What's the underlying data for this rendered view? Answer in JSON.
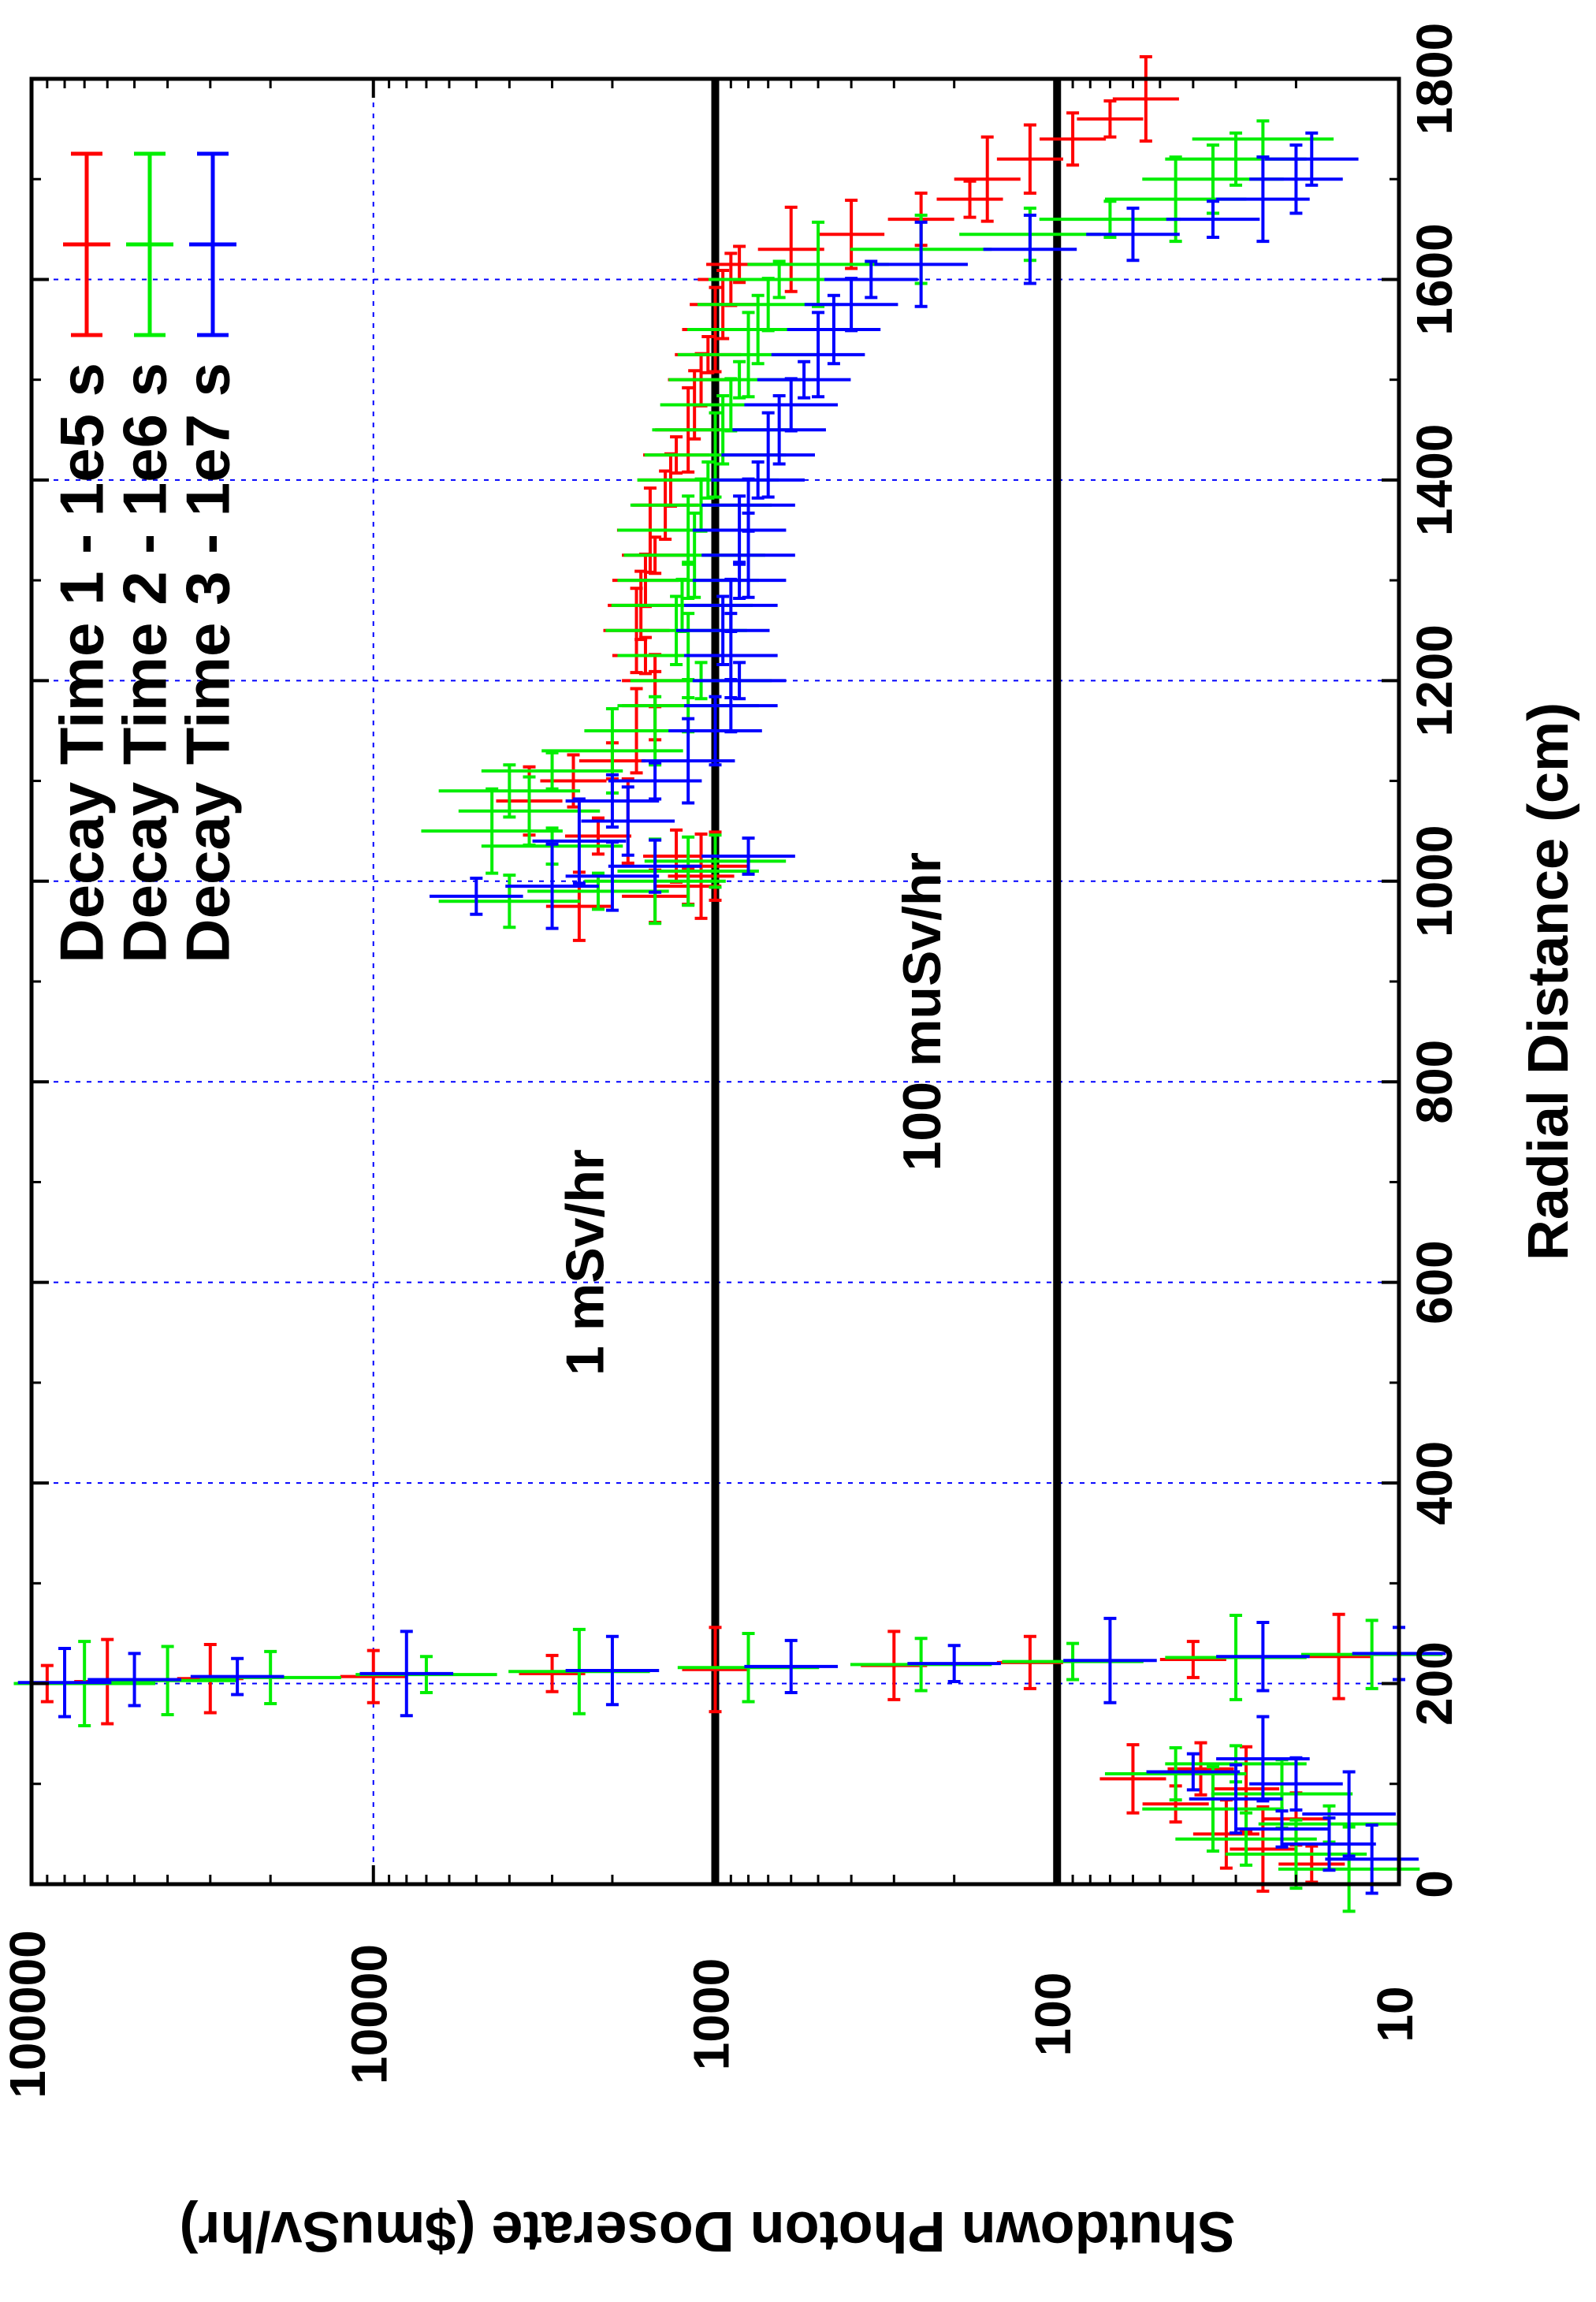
{
  "chart_data": {
    "type": "scatter",
    "xlabel": "Radial Distance (cm)",
    "ylabel": "Shutdown Photon Doserate ($muSv/hr)",
    "x_ticks": [
      "0",
      "200",
      "400",
      "600",
      "800",
      "1000",
      "1200",
      "1400",
      "1600",
      "1800"
    ],
    "y_ticks": [
      "10",
      "100",
      "1000",
      "10000",
      "100000"
    ],
    "xlim": [
      0,
      1800
    ],
    "ylim": [
      10,
      100000
    ],
    "y_scale": "log",
    "grid": true,
    "legend_position": "top-right",
    "reference_lines": [
      {
        "label": "1 mSv/hr",
        "value": 1000
      },
      {
        "label": "100 muSv/hr",
        "value": 100
      }
    ],
    "series": [
      {
        "name": "Decay Time 1 - 1e5 s",
        "color": "#ff0000",
        "points": [
          [
            20,
            18
          ],
          [
            35,
            25
          ],
          [
            50,
            32
          ],
          [
            65,
            20
          ],
          [
            80,
            45
          ],
          [
            95,
            28
          ],
          [
            105,
            60
          ],
          [
            115,
            38
          ],
          [
            200,
            90000
          ],
          [
            202,
            60000
          ],
          [
            205,
            30000
          ],
          [
            207,
            10000
          ],
          [
            210,
            3000
          ],
          [
            214,
            1000
          ],
          [
            218,
            300
          ],
          [
            221,
            120
          ],
          [
            224,
            40
          ],
          [
            227,
            15
          ],
          [
            975,
            2500
          ],
          [
            985,
            1500
          ],
          [
            995,
            1200
          ],
          [
            1005,
            1100
          ],
          [
            1015,
            1000
          ],
          [
            1025,
            1300
          ],
          [
            1045,
            2200
          ],
          [
            1060,
            1800
          ],
          [
            1080,
            3500
          ],
          [
            1100,
            2600
          ],
          [
            1120,
            2000
          ],
          [
            1150,
            1700
          ],
          [
            1175,
            1500
          ],
          [
            1200,
            1500
          ],
          [
            1225,
            1600
          ],
          [
            1250,
            1700
          ],
          [
            1275,
            1650
          ],
          [
            1300,
            1600
          ],
          [
            1325,
            1500
          ],
          [
            1350,
            1550
          ],
          [
            1375,
            1400
          ],
          [
            1400,
            1350
          ],
          [
            1425,
            1300
          ],
          [
            1450,
            1200
          ],
          [
            1475,
            1150
          ],
          [
            1500,
            1100
          ],
          [
            1525,
            1050
          ],
          [
            1550,
            1000
          ],
          [
            1575,
            950
          ],
          [
            1600,
            900
          ],
          [
            1615,
            850
          ],
          [
            1630,
            600
          ],
          [
            1645,
            400
          ],
          [
            1660,
            250
          ],
          [
            1680,
            180
          ],
          [
            1700,
            160
          ],
          [
            1720,
            120
          ],
          [
            1740,
            90
          ],
          [
            1760,
            70
          ],
          [
            1780,
            55
          ]
        ]
      },
      {
        "name": "Decay Time 2 - 1e6 s",
        "color": "#00ee00",
        "points": [
          [
            15,
            14
          ],
          [
            30,
            20
          ],
          [
            45,
            28
          ],
          [
            60,
            16
          ],
          [
            75,
            35
          ],
          [
            90,
            22
          ],
          [
            110,
            45
          ],
          [
            120,
            30
          ],
          [
            200,
            70000
          ],
          [
            203,
            40000
          ],
          [
            206,
            20000
          ],
          [
            209,
            7000
          ],
          [
            212,
            2500
          ],
          [
            216,
            800
          ],
          [
            219,
            250
          ],
          [
            222,
            90
          ],
          [
            226,
            30
          ],
          [
            229,
            12
          ],
          [
            980,
            4000
          ],
          [
            990,
            2200
          ],
          [
            1000,
            1500
          ],
          [
            1010,
            1200
          ],
          [
            1020,
            1000
          ],
          [
            1035,
            3000
          ],
          [
            1050,
            4500
          ],
          [
            1070,
            3500
          ],
          [
            1090,
            4000
          ],
          [
            1110,
            3000
          ],
          [
            1130,
            2000
          ],
          [
            1150,
            1500
          ],
          [
            1175,
            1200
          ],
          [
            1200,
            1100
          ],
          [
            1225,
            1200
          ],
          [
            1250,
            1300
          ],
          [
            1275,
            1250
          ],
          [
            1300,
            1200
          ],
          [
            1325,
            1150
          ],
          [
            1350,
            1200
          ],
          [
            1375,
            1100
          ],
          [
            1400,
            1050
          ],
          [
            1425,
            1000
          ],
          [
            1450,
            950
          ],
          [
            1475,
            900
          ],
          [
            1500,
            850
          ],
          [
            1525,
            800
          ],
          [
            1550,
            750
          ],
          [
            1575,
            700
          ],
          [
            1600,
            650
          ],
          [
            1615,
            500
          ],
          [
            1630,
            250
          ],
          [
            1645,
            120
          ],
          [
            1660,
            70
          ],
          [
            1680,
            45
          ],
          [
            1700,
            35
          ],
          [
            1720,
            30
          ],
          [
            1740,
            25
          ]
        ]
      },
      {
        "name": "Decay Time 3 - 1e7 s",
        "color": "#0000ff",
        "points": [
          [
            25,
            12
          ],
          [
            40,
            16
          ],
          [
            55,
            22
          ],
          [
            70,
            14
          ],
          [
            85,
            30
          ],
          [
            100,
            20
          ],
          [
            112,
            40
          ],
          [
            125,
            25
          ],
          [
            201,
            80000
          ],
          [
            204,
            50000
          ],
          [
            207,
            25000
          ],
          [
            210,
            8000
          ],
          [
            213,
            2000
          ],
          [
            217,
            600
          ],
          [
            220,
            200
          ],
          [
            223,
            70
          ],
          [
            227,
            25
          ],
          [
            230,
            10
          ],
          [
            985,
            5000
          ],
          [
            995,
            3000
          ],
          [
            1005,
            2000
          ],
          [
            1015,
            1500
          ],
          [
            1025,
            800
          ],
          [
            1040,
            2500
          ],
          [
            1060,
            1800
          ],
          [
            1080,
            2000
          ],
          [
            1100,
            1500
          ],
          [
            1120,
            1200
          ],
          [
            1150,
            1000
          ],
          [
            1175,
            900
          ],
          [
            1200,
            850
          ],
          [
            1225,
            900
          ],
          [
            1250,
            950
          ],
          [
            1275,
            900
          ],
          [
            1300,
            850
          ],
          [
            1325,
            800
          ],
          [
            1350,
            850
          ],
          [
            1375,
            800
          ],
          [
            1400,
            750
          ],
          [
            1425,
            700
          ],
          [
            1450,
            650
          ],
          [
            1475,
            600
          ],
          [
            1500,
            550
          ],
          [
            1525,
            500
          ],
          [
            1550,
            450
          ],
          [
            1575,
            400
          ],
          [
            1600,
            350
          ],
          [
            1615,
            250
          ],
          [
            1630,
            120
          ],
          [
            1645,
            60
          ],
          [
            1660,
            35
          ],
          [
            1680,
            25
          ],
          [
            1700,
            20
          ],
          [
            1720,
            18
          ]
        ]
      }
    ]
  }
}
